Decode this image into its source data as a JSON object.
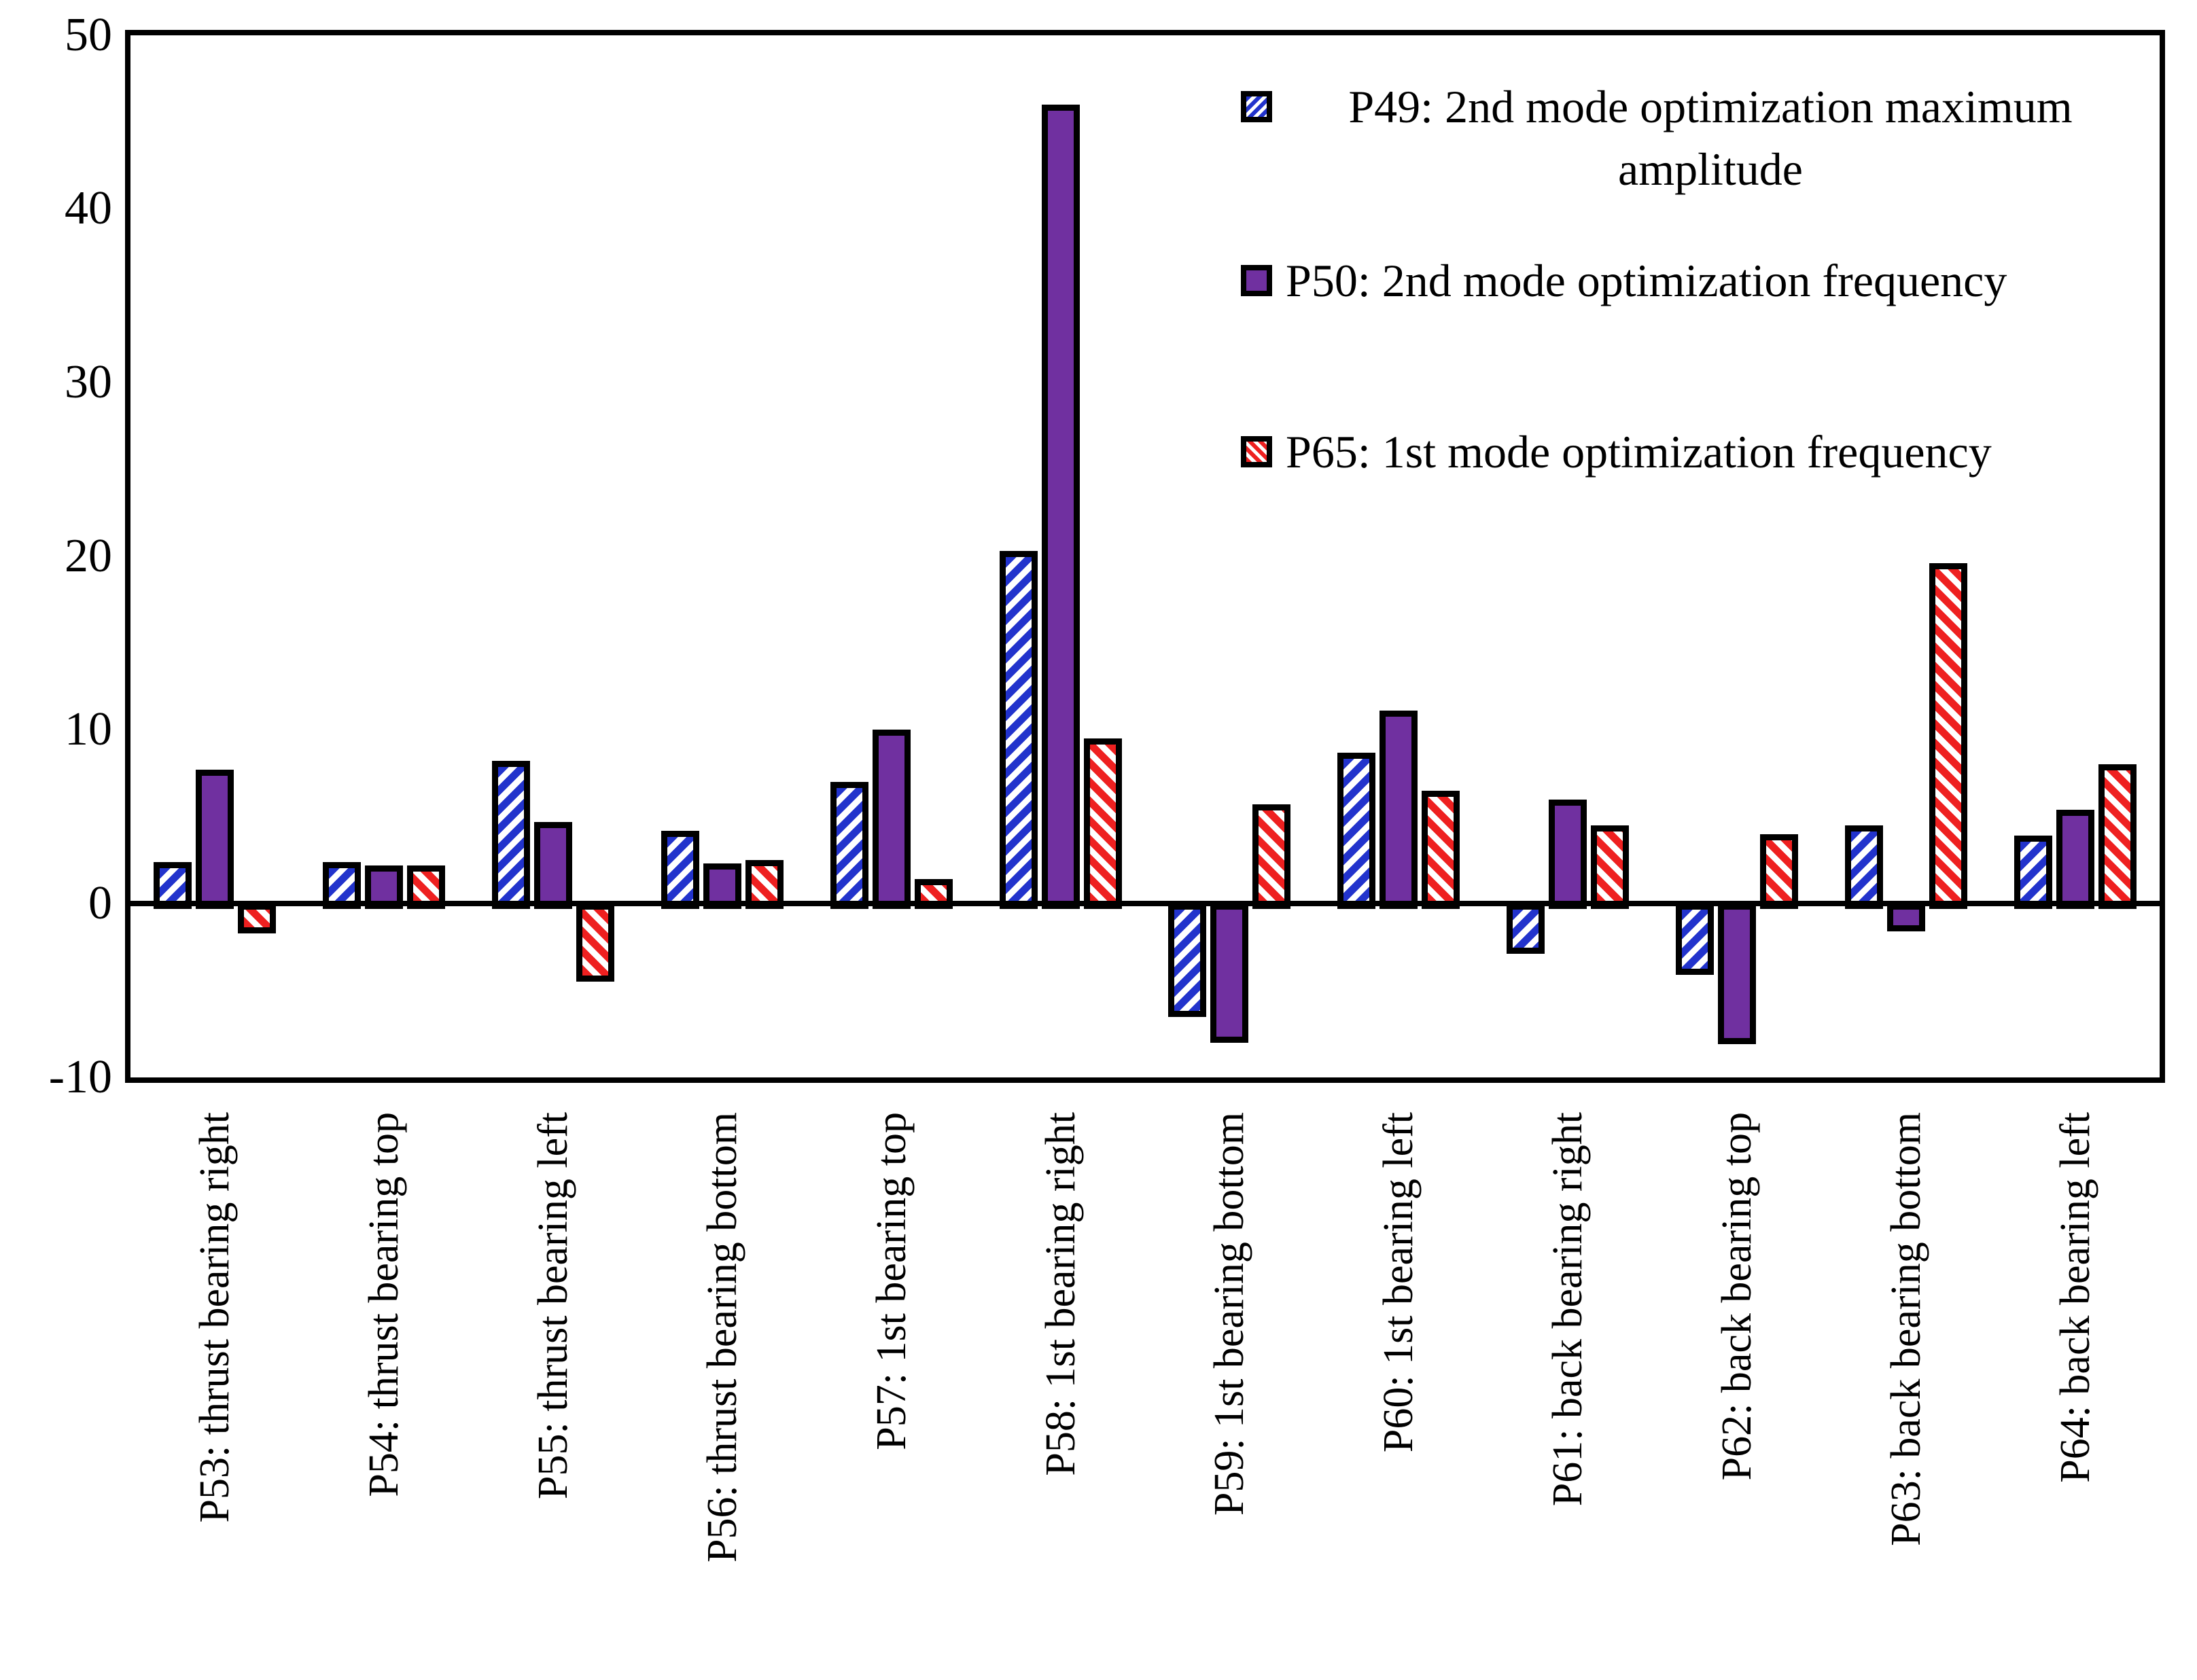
{
  "chart_data": {
    "type": "bar",
    "title": "",
    "xlabel": "",
    "ylabel": "",
    "ylim": [
      -10,
      50
    ],
    "yticks": [
      50,
      40,
      30,
      20,
      10,
      0,
      -10
    ],
    "grid": false,
    "legend_position": "top-right-inside",
    "categories": [
      "P53: thrust bearing right",
      "P54: thrust bearing top",
      "P55: thrust bearing left",
      "P56: thrust bearing bottom",
      "P57: 1st bearing top",
      "P58: 1st bearing right",
      "P59: 1st bearing bottom",
      "P60: 1st bearing left",
      "P61: back bearing right",
      "P62: back bearing top",
      "P63: back bearing bottom",
      "P64: back bearing left"
    ],
    "series": [
      {
        "name": "P49: 2nd mode optimization maximum amplitude",
        "style": "blue-diagonal-hatch-up",
        "color": "#2233CC",
        "values": [
          2.4,
          2.4,
          8.2,
          4.2,
          7.0,
          20.3,
          -6.2,
          8.7,
          -2.6,
          -3.8,
          4.5,
          3.9
        ]
      },
      {
        "name": "P50: 2nd mode optimization frequency",
        "style": "purple-solid",
        "color": "#7030A0",
        "values": [
          7.7,
          2.2,
          4.7,
          2.3,
          10.0,
          46.0,
          -7.7,
          11.1,
          6.0,
          -7.8,
          -1.3,
          5.4
        ]
      },
      {
        "name": "P65: 1st mode optimization frequency",
        "style": "red-diagonal-hatch-down",
        "color": "#EE2020",
        "values": [
          -1.4,
          2.2,
          -4.2,
          2.5,
          1.4,
          9.5,
          5.7,
          6.5,
          4.5,
          4.0,
          19.6,
          8.0
        ]
      }
    ]
  },
  "legend": {
    "items": [
      {
        "lines": [
          "P49: 2nd mode optimization maximum",
          "amplitude"
        ]
      },
      {
        "lines": [
          "P50: 2nd mode optimization frequency"
        ]
      },
      {
        "lines": [
          "P65: 1st mode optimization frequency"
        ]
      }
    ]
  }
}
